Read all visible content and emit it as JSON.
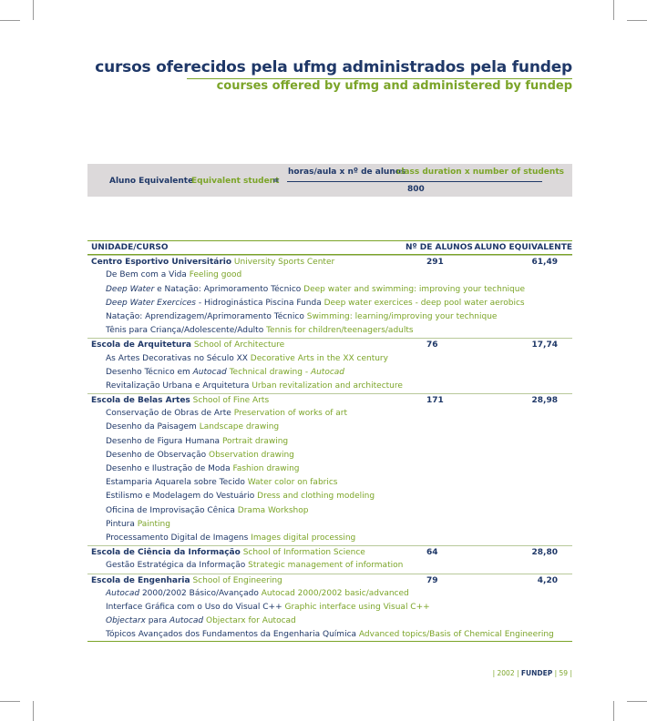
{
  "header": {
    "title": "cursos oferecidos pela ufmg administrados pela  fundep",
    "subtitle": "courses offered by ufmg and administered by fundep"
  },
  "formula": {
    "label_pt": "Aluno Equivalente",
    "label_en": "Equivalent student",
    "equals": "=",
    "numerator_pt": "horas/aula x nº de alunos",
    "numerator_en": "class duration x number of students",
    "denominator": "800"
  },
  "table": {
    "columns": [
      "UNIDADE/CURSO",
      "Nº DE ALUNOS",
      "ALUNO EQUIVALENTE"
    ],
    "units": [
      {
        "name_pt": "Centro Esportivo Universitário",
        "name_en": "University Sports Center",
        "students": "291",
        "equivalent": "61,49",
        "courses": [
          {
            "pt": "De Bem com a Vida",
            "en": "Feeling good"
          },
          {
            "pt": [
              {
                "text": "Deep Water",
                "italic": true
              },
              {
                "text": " e Natação: Aprimoramento Técnico"
              }
            ],
            "en": "Deep water and swimming: improving your technique"
          },
          {
            "pt": [
              {
                "text": "Deep Water Exercices",
                "italic": true
              },
              {
                "text": " - Hidroginástica Piscina  Funda"
              }
            ],
            "en": "Deep water exercices - deep pool water aerobics"
          },
          {
            "pt": "Natação: Aprendizagem/Aprimoramento Técnico",
            "en": "Swimming: learning/improving your technique"
          },
          {
            "pt": "Tênis para Criança/Adolescente/Adulto",
            "en": "Tennis for children/teenagers/adults"
          }
        ]
      },
      {
        "name_pt": "Escola de Arquitetura",
        "name_en": "School of Architecture",
        "students": "76",
        "equivalent": "17,74",
        "courses": [
          {
            "pt": "As Artes Decorativas no Século XX",
            "en": "Decorative Arts in the XX century"
          },
          {
            "pt": [
              {
                "text": "Desenho Técnico em "
              },
              {
                "text": "Autocad",
                "italic": true
              }
            ],
            "en": [
              {
                "text": "Technical drawing - "
              },
              {
                "text": "Autocad",
                "italic": true
              }
            ]
          },
          {
            "pt": "Revitalização Urbana e Arquitetura",
            "en": "Urban revitalization and architecture"
          }
        ]
      },
      {
        "name_pt": "Escola de Belas Artes",
        "name_en": "School of Fine Arts",
        "students": "171",
        "equivalent": "28,98",
        "courses": [
          {
            "pt": "Conservação de Obras de Arte",
            "en": "Preservation of works of art"
          },
          {
            "pt": "Desenho da Paisagem",
            "en": "Landscape drawing"
          },
          {
            "pt": "Desenho de Figura Humana",
            "en": "Portrait drawing"
          },
          {
            "pt": "Desenho de Observação",
            "en": "Observation drawing"
          },
          {
            "pt": "Desenho e Ilustração de Moda",
            "en": "Fashion drawing"
          },
          {
            "pt": "Estamparia Aquarela sobre Tecido",
            "en": "Water color on fabrics"
          },
          {
            "pt": "Estilismo e Modelagem do Vestuário",
            "en": "Dress and clothing modeling"
          },
          {
            "pt": "Oficina de Improvisação Cênica",
            "en": "Drama Workshop"
          },
          {
            "pt": "Pintura",
            "en": "Painting"
          },
          {
            "pt": "Processamento Digital de Imagens",
            "en": "Images digital processing"
          }
        ]
      },
      {
        "name_pt": "Escola de Ciência da Informação",
        "name_en": "School of Information Science",
        "students": "64",
        "equivalent": "28,80",
        "courses": [
          {
            "pt": "Gestão Estratégica da Informação",
            "en": "Strategic management of information"
          }
        ]
      },
      {
        "name_pt": "Escola de Engenharia",
        "name_en": "School of Engineering",
        "students": "79",
        "equivalent": "4,20",
        "courses": [
          {
            "pt": [
              {
                "text": "Autocad",
                "italic": true
              },
              {
                "text": " 2000/2002 Básico/Avançado"
              }
            ],
            "en": "Autocad 2000/2002 basic/advanced"
          },
          {
            "pt": "Interface Gráfica com o Uso do Visual C++",
            "en": "Graphic interface using Visual C++"
          },
          {
            "pt": [
              {
                "text": "Objectarx",
                "italic": true
              },
              {
                "text": " para "
              },
              {
                "text": "Autocad",
                "italic": true
              }
            ],
            "en": "Objectarx for Autocad"
          },
          {
            "pt": "Tópicos Avançados dos Fundamentos da Engenharia Química",
            "en": "Advanced topics/Basis of Chemical Engineering"
          }
        ]
      }
    ]
  },
  "footer": {
    "year": "2002",
    "org": "FUNDEP",
    "page": "59"
  }
}
